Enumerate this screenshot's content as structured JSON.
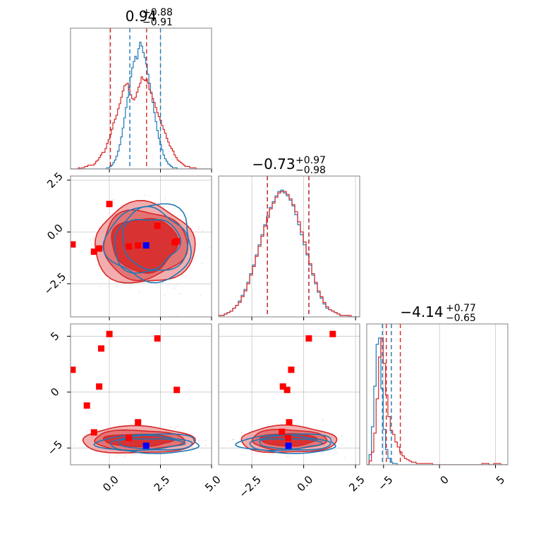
{
  "chart_data": {
    "type": "corner",
    "parameters": [
      "p0",
      "p1",
      "p2"
    ],
    "colors": {
      "red": "#d62728",
      "blue": "#1f77b4",
      "blue_marker": "#0000ff",
      "red_fill_light": "#f0a0a0",
      "red_fill_dark": "#d62728"
    },
    "titles": [
      {
        "median": "0.94",
        "plus": "+0.88",
        "minus": "−0.91"
      },
      {
        "median": "−0.73",
        "plus": "+0.97",
        "minus": "−0.98"
      },
      {
        "median": "−4.14",
        "plus": "+0.77",
        "minus": "−0.65"
      }
    ],
    "ranges": [
      [
        -1.9,
        5.0
      ],
      [
        -4.1,
        2.7
      ],
      [
        -6.5,
        6.1
      ]
    ],
    "ticks": [
      {
        "values": [
          0.0,
          2.5,
          5.0
        ],
        "labels": [
          "0.0",
          "2.5",
          "5.0"
        ]
      },
      {
        "values": [
          -2.5,
          0.0,
          2.5
        ],
        "labels": [
          "−2.5",
          "0.0",
          "2.5"
        ]
      },
      {
        "values": [
          -5,
          0,
          5
        ],
        "labels": [
          "−5",
          "0",
          "5"
        ]
      }
    ],
    "quantiles_red": [
      [
        0.05,
        1.82
      ],
      [
        -1.75,
        0.25
      ],
      [
        -4.75,
        -3.5
      ]
    ],
    "quantiles_blue": [
      [
        1.0,
        2.5
      ],
      [
        -1.75,
        0.25
      ],
      [
        -5.1,
        -4.3
      ]
    ],
    "red_points": [
      [
        [
          -1.8,
          -0.6
        ],
        [
          0.0,
          1.35
        ],
        [
          -0.75,
          -0.95
        ],
        [
          -0.5,
          -0.8
        ],
        [
          0.95,
          -0.7
        ],
        [
          1.4,
          -0.65
        ],
        [
          2.35,
          0.3
        ],
        [
          3.3,
          -0.45
        ],
        [
          3.2,
          -0.5
        ]
      ],
      [
        [
          -1.8,
          2.0
        ],
        [
          -1.1,
          -1.2
        ],
        [
          -0.75,
          -3.6
        ],
        [
          -0.5,
          0.5
        ],
        [
          -0.4,
          3.9
        ],
        [
          0.0,
          5.2
        ],
        [
          0.95,
          -4.1
        ],
        [
          1.4,
          -2.7
        ],
        [
          2.35,
          4.8
        ],
        [
          3.3,
          0.2
        ]
      ],
      [
        [
          -0.6,
          2.0
        ],
        [
          -1.0,
          0.5
        ],
        [
          -0.8,
          0.2
        ],
        [
          -0.7,
          -2.7
        ],
        [
          -1.05,
          -3.55
        ],
        [
          -0.75,
          -4.1
        ],
        [
          0.25,
          4.8
        ],
        [
          1.4,
          5.2
        ]
      ]
    ],
    "blue_points": [
      [
        [
          1.8,
          -0.65
        ]
      ],
      [
        [
          1.8,
          -4.8
        ]
      ],
      [
        [
          -0.73,
          -4.8
        ]
      ]
    ],
    "hist_red": [
      [
        0,
        0,
        0,
        0,
        0,
        1,
        0,
        1,
        1,
        2,
        2,
        3,
        3,
        3,
        3,
        4,
        6,
        7,
        9,
        11,
        13,
        13,
        16,
        20,
        23,
        27,
        31,
        36,
        39,
        42,
        47,
        51,
        56,
        61,
        65,
        66,
        67,
        62,
        58,
        55,
        54,
        56,
        60,
        64,
        67,
        72,
        70,
        69,
        70,
        67,
        62,
        59,
        55,
        52,
        48,
        44,
        41,
        38,
        34,
        31,
        28,
        24,
        21,
        18,
        16,
        14,
        11,
        9,
        7,
        6,
        5,
        4,
        3,
        2,
        2,
        2,
        1,
        1,
        1,
        1,
        0,
        0,
        0,
        0,
        0,
        0,
        0,
        0,
        0,
        0
      ],
      [
        1,
        1,
        2,
        3,
        4,
        6,
        8,
        10,
        14,
        18,
        23,
        29,
        35,
        42,
        49,
        56,
        63,
        69,
        75,
        79,
        83,
        86,
        87,
        87,
        85,
        82,
        78,
        73,
        66,
        59,
        52,
        44,
        37,
        30,
        24,
        18,
        14,
        10,
        7,
        5,
        4,
        3,
        2,
        1,
        1,
        1,
        1,
        0,
        0,
        0
      ],
      [
        0,
        3,
        10,
        25,
        52,
        85,
        100,
        80,
        55,
        38,
        27,
        24,
        18,
        14,
        10,
        7,
        5,
        4,
        3,
        2,
        2,
        1,
        1,
        1,
        1,
        1,
        1,
        1,
        0,
        0,
        0,
        0,
        0,
        0,
        0,
        0,
        0,
        0,
        0,
        0,
        0,
        0,
        0,
        0,
        0,
        0,
        0,
        0,
        0,
        1,
        1,
        1,
        0,
        0,
        1,
        1,
        1,
        0,
        0,
        0
      ]
    ],
    "hist_blue": [
      [
        0,
        0,
        0,
        0,
        0,
        0,
        0,
        0,
        0,
        0,
        0,
        0,
        0,
        0,
        0,
        0,
        0,
        0,
        0,
        0,
        0,
        0,
        0,
        1,
        1,
        2,
        3,
        5,
        7,
        10,
        14,
        19,
        25,
        32,
        40,
        48,
        56,
        64,
        72,
        79,
        84,
        88,
        86,
        94,
        99,
        96,
        91,
        87,
        82,
        74,
        67,
        60,
        52,
        44,
        37,
        30,
        24,
        19,
        15,
        11,
        8,
        6,
        4,
        3,
        2,
        1,
        1,
        1,
        0,
        0,
        0,
        0,
        0,
        0,
        0,
        0,
        0,
        0,
        0,
        0,
        0,
        0,
        0,
        0,
        0,
        0,
        0,
        0,
        0,
        0
      ],
      [
        1,
        1,
        2,
        3,
        4,
        6,
        8,
        11,
        15,
        19,
        24,
        30,
        36,
        43,
        50,
        57,
        64,
        70,
        76,
        80,
        84,
        87,
        88,
        86,
        84,
        81,
        77,
        71,
        64,
        57,
        50,
        43,
        36,
        29,
        23,
        17,
        13,
        9,
        6,
        5,
        4,
        3,
        2,
        1,
        1,
        1,
        0,
        0,
        0,
        0
      ],
      [
        0,
        8,
        30,
        62,
        95,
        100,
        60,
        28,
        12,
        5,
        2,
        1,
        1,
        0,
        0,
        0,
        0,
        0,
        0,
        0,
        0,
        0,
        0,
        0,
        0,
        0,
        0,
        0,
        0,
        0,
        0,
        0,
        0,
        0,
        0,
        0,
        0,
        0,
        0,
        0,
        0,
        0,
        0,
        0,
        0,
        0,
        0,
        0,
        0,
        0,
        0,
        0,
        0,
        0,
        0,
        0,
        0,
        0,
        0,
        0
      ]
    ],
    "contours": {
      "pair_1_0": {
        "center": [
          1.7,
          -0.6
        ],
        "red_radii": [
          [
            1.6,
            1.3
          ],
          [
            2.05,
            1.65
          ],
          [
            2.45,
            1.95
          ]
        ],
        "blue_center": [
          2.0,
          -0.5
        ],
        "blue_radii": [
          [
            1.4,
            1.2
          ],
          [
            1.8,
            1.55
          ],
          [
            2.1,
            1.85
          ]
        ]
      },
      "pair_2_0": {
        "center": [
          1.4,
          -4.3
        ],
        "red_radii": [
          [
            1.7,
            0.55
          ],
          [
            2.2,
            0.9
          ],
          [
            2.75,
            1.2
          ]
        ],
        "blue_center": [
          2.0,
          -4.6
        ],
        "blue_radii": [
          [
            1.6,
            0.45
          ],
          [
            2.0,
            0.65
          ],
          [
            2.5,
            0.85
          ]
        ]
      },
      "pair_2_1": {
        "center": [
          -0.75,
          -4.25
        ],
        "red_radii": [
          [
            1.35,
            0.55
          ],
          [
            1.8,
            0.9
          ],
          [
            2.3,
            1.2
          ]
        ],
        "blue_center": [
          -0.7,
          -4.6
        ],
        "blue_radii": [
          [
            1.5,
            0.45
          ],
          [
            1.95,
            0.65
          ],
          [
            2.35,
            0.85
          ]
        ]
      }
    }
  }
}
